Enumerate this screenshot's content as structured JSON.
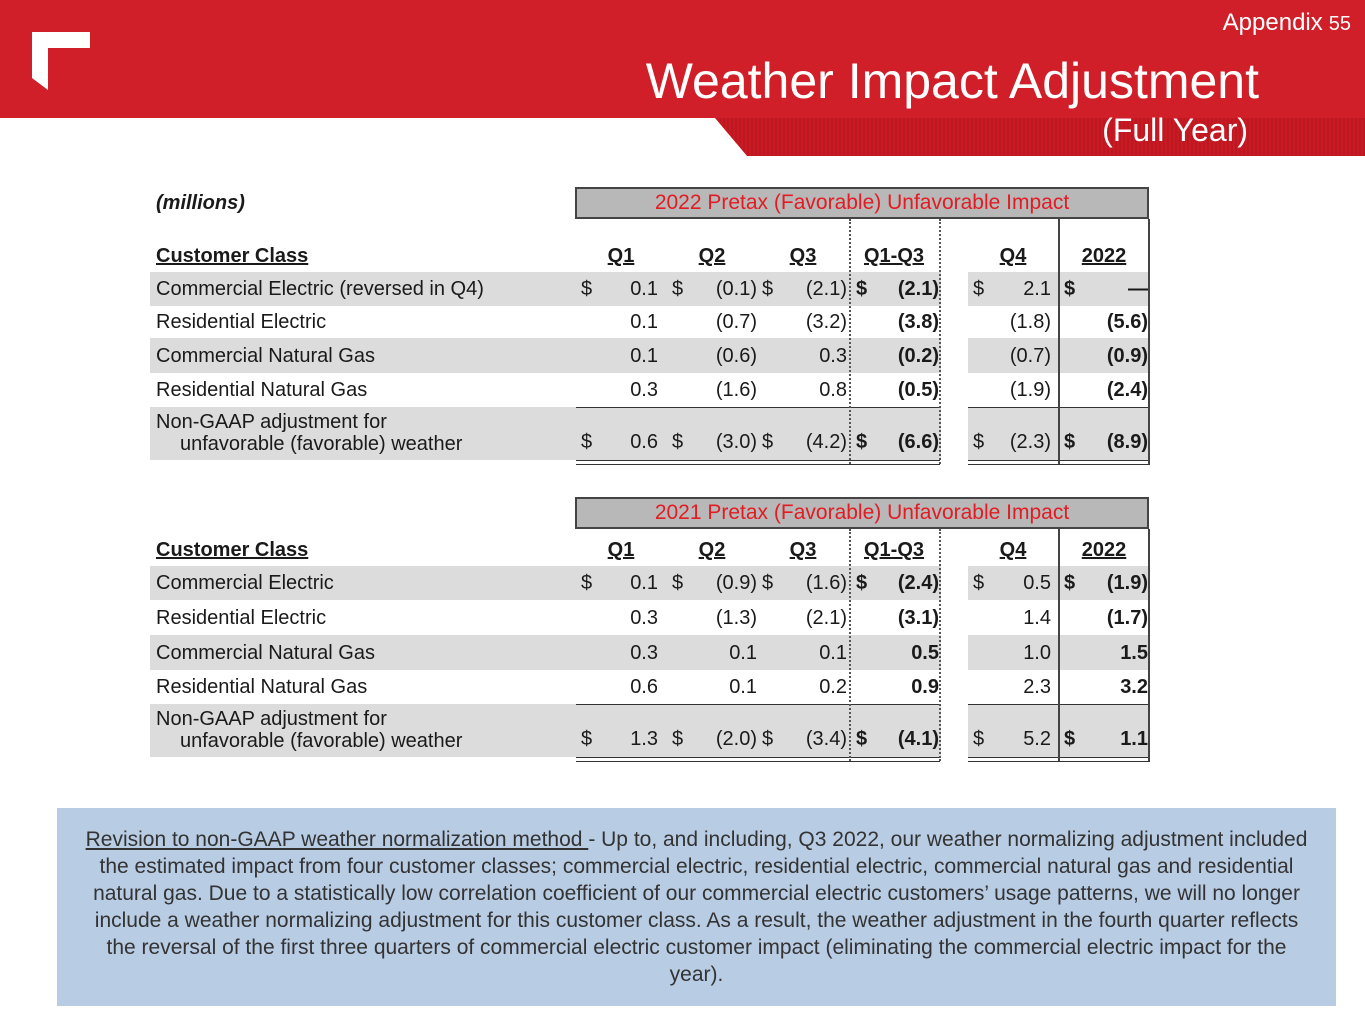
{
  "header": {
    "appendix_label": "Appendix",
    "page_number": "55",
    "title": "Weather Impact Adjustment",
    "subtitle": "(Full Year)",
    "colors": {
      "brand_red": "#d01f28",
      "header_text": "#e31b23"
    }
  },
  "units_label": "(millions)",
  "tables": [
    {
      "heading": "2022 Pretax (Favorable) Unfavorable Impact",
      "columns": [
        "Customer Class",
        "Q1",
        "Q2",
        "Q3",
        "Q1-Q3",
        "Q4",
        "2022"
      ],
      "rows": [
        {
          "label": "Commercial Electric (reversed in Q4)",
          "cells": [
            "0.1",
            "(0.1)",
            "(2.1)",
            "(2.1)",
            "2.1",
            "—"
          ],
          "dollar": true
        },
        {
          "label": "Residential Electric",
          "cells": [
            "0.1",
            "(0.7)",
            "(3.2)",
            "(3.8)",
            "(1.8)",
            "(5.6)"
          ],
          "dollar": false
        },
        {
          "label": "Commercial Natural Gas",
          "cells": [
            "0.1",
            "(0.6)",
            "0.3",
            "(0.2)",
            "(0.7)",
            "(0.9)"
          ],
          "dollar": false
        },
        {
          "label": "Residential Natural Gas",
          "cells": [
            "0.3",
            "(1.6)",
            "0.8",
            "(0.5)",
            "(1.9)",
            "(2.4)"
          ],
          "dollar": false
        }
      ],
      "total": {
        "label_line1": "Non-GAAP adjustment for",
        "label_line2": "unfavorable (favorable) weather",
        "cells": [
          "0.6",
          "(3.0)",
          "(4.2)",
          "(6.6)",
          "(2.3)",
          "(8.9)"
        ]
      }
    },
    {
      "heading": "2021 Pretax (Favorable) Unfavorable Impact",
      "columns": [
        "Customer Class",
        "Q1",
        "Q2",
        "Q3",
        "Q1-Q3",
        "Q4",
        "2022"
      ],
      "rows": [
        {
          "label": "Commercial Electric",
          "cells": [
            "0.1",
            "(0.9)",
            "(1.6)",
            "(2.4)",
            "0.5",
            "(1.9)"
          ],
          "dollar": true
        },
        {
          "label": "Residential Electric",
          "cells": [
            "0.3",
            "(1.3)",
            "(2.1)",
            "(3.1)",
            "1.4",
            "(1.7)"
          ],
          "dollar": false
        },
        {
          "label": "Commercial Natural Gas",
          "cells": [
            "0.3",
            "0.1",
            "0.1",
            "0.5",
            "1.0",
            "1.5"
          ],
          "dollar": false
        },
        {
          "label": "Residential Natural Gas",
          "cells": [
            "0.6",
            "0.1",
            "0.2",
            "0.9",
            "2.3",
            "3.2"
          ],
          "dollar": false
        }
      ],
      "total": {
        "label_line1": "Non-GAAP adjustment for",
        "label_line2": "unfavorable (favorable) weather",
        "cells": [
          "1.3",
          "(2.0)",
          "(3.4)",
          "(4.1)",
          "5.2",
          "1.1"
        ]
      }
    }
  ],
  "currency_symbol": "$",
  "note": {
    "link_text": "Revision to non-GAAP weather normalization method ",
    "body": "- Up to, and including, Q3 2022, our weather normalizing adjustment included the estimated impact from four customer classes; commercial electric, residential electric, commercial natural gas and residential natural gas. Due to a statistically low correlation coefficient of our commercial electric customers’ usage patterns, we will no longer include a weather normalizing adjustment for this customer class. As a result, the weather adjustment in the fourth quarter reflects the reversal of the first three quarters of commercial electric customer impact (eliminating the commercial electric impact for the year)."
  }
}
